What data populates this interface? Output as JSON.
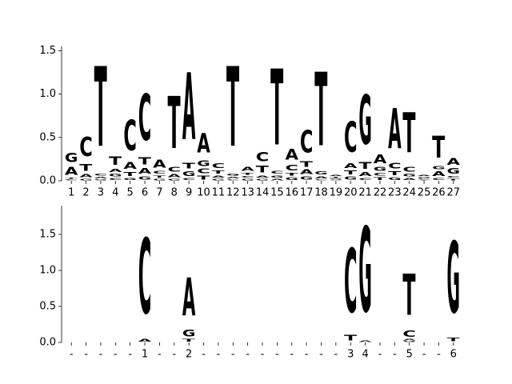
{
  "chart_data": [
    {
      "type": "logo",
      "categories": [
        "1",
        "2",
        "3",
        "4",
        "5",
        "6",
        "7",
        "8",
        "9",
        "10",
        "11",
        "12",
        "13",
        "14",
        "15",
        "16",
        "17",
        "18",
        "19",
        "20",
        "21",
        "22",
        "23",
        "24",
        "25",
        "26",
        "27"
      ],
      "colors": {
        "A": "#008000",
        "C": "#0000ff",
        "G": "#ffa500",
        "T": "#ff0000"
      },
      "ylim": [
        0,
        1.55
      ],
      "yticks": [
        {
          "value": 0,
          "label": "0.0"
        },
        0.5,
        {
          "value": 1,
          "label": "1.0"
        },
        1.5
      ],
      "stacks": [
        {
          "letters": [
            "C",
            "T",
            "A",
            "G"
          ],
          "heights": [
            0.02,
            0.02,
            0.14,
            0.17
          ]
        },
        {
          "letters": [
            "G",
            "A",
            "T",
            "C"
          ],
          "heights": [
            0.03,
            0.06,
            0.12,
            0.35
          ]
        },
        {
          "letters": [
            "G",
            "A",
            "C",
            "T"
          ],
          "heights": [
            0.02,
            0.03,
            0.04,
            1.45
          ]
        },
        {
          "letters": [
            "C",
            "G",
            "A",
            "T"
          ],
          "heights": [
            0.04,
            0.05,
            0.06,
            0.15
          ]
        },
        {
          "letters": [
            "G",
            "T",
            "A",
            "C"
          ],
          "heights": [
            0.04,
            0.07,
            0.12,
            0.56
          ]
        },
        {
          "letters": [
            "G",
            "A",
            "T",
            "C"
          ],
          "heights": [
            0.06,
            0.1,
            0.13,
            0.84
          ]
        },
        {
          "letters": [
            "G",
            "T",
            "C",
            "A"
          ],
          "heights": [
            0.03,
            0.04,
            0.05,
            0.14
          ]
        },
        {
          "letters": [
            "G",
            "A",
            "C",
            "T"
          ],
          "heights": [
            0.03,
            0.06,
            0.08,
            0.95
          ]
        },
        {
          "letters": [
            "C",
            "G",
            "T",
            "A"
          ],
          "heights": [
            0.04,
            0.08,
            0.1,
            1.21
          ]
        },
        {
          "letters": [
            "T",
            "C",
            "G",
            "A"
          ],
          "heights": [
            0.07,
            0.08,
            0.1,
            0.35
          ]
        },
        {
          "letters": [
            "G",
            "A",
            "T",
            "C"
          ],
          "heights": [
            0.03,
            0.04,
            0.06,
            0.08
          ]
        },
        {
          "letters": [
            "C",
            "A",
            "G",
            "T"
          ],
          "heights": [
            0.02,
            0.03,
            0.04,
            1.45
          ]
        },
        {
          "letters": [
            "G",
            "C",
            "T",
            "A"
          ],
          "heights": [
            0.03,
            0.03,
            0.04,
            0.07
          ]
        },
        {
          "letters": [
            "G",
            "A",
            "T",
            "C"
          ],
          "heights": [
            0.03,
            0.04,
            0.12,
            0.17
          ]
        },
        {
          "letters": [
            "A",
            "G",
            "C",
            "T"
          ],
          "heights": [
            0.03,
            0.04,
            0.05,
            1.38
          ]
        },
        {
          "letters": [
            "G",
            "T",
            "C",
            "A"
          ],
          "heights": [
            0.05,
            0.05,
            0.1,
            0.2
          ]
        },
        {
          "letters": [
            "G",
            "A",
            "T",
            "C"
          ],
          "heights": [
            0.06,
            0.08,
            0.1,
            0.41
          ]
        },
        {
          "letters": [
            "C",
            "A",
            "G",
            "T"
          ],
          "heights": [
            0.02,
            0.04,
            0.06,
            1.33
          ]
        },
        {
          "letters": [
            "C",
            "G",
            "T",
            "A"
          ],
          "heights": [
            0.01,
            0.02,
            0.02,
            0.02
          ]
        },
        {
          "letters": [
            "G",
            "T",
            "A",
            "C"
          ],
          "heights": [
            0.06,
            0.07,
            0.08,
            0.56
          ]
        },
        {
          "letters": [
            "C",
            "A",
            "T",
            "G"
          ],
          "heights": [
            0.04,
            0.07,
            0.12,
            0.9
          ]
        },
        {
          "letters": [
            "T",
            "C",
            "G",
            "A"
          ],
          "heights": [
            0.05,
            0.05,
            0.07,
            0.16
          ]
        },
        {
          "letters": [
            "G",
            "T",
            "C",
            "A"
          ],
          "heights": [
            0.05,
            0.07,
            0.1,
            0.73
          ]
        },
        {
          "letters": [
            "A",
            "G",
            "C",
            "T"
          ],
          "heights": [
            0.04,
            0.05,
            0.08,
            0.73
          ]
        },
        {
          "letters": [
            "T",
            "C",
            "G",
            "A"
          ],
          "heights": [
            0.01,
            0.02,
            0.02,
            0.02
          ]
        },
        {
          "letters": [
            "C",
            "A",
            "G",
            "T"
          ],
          "heights": [
            0.04,
            0.08,
            0.06,
            0.4
          ]
        },
        {
          "letters": [
            "T",
            "C",
            "G",
            "A"
          ],
          "heights": [
            0.03,
            0.03,
            0.1,
            0.12
          ]
        }
      ]
    },
    {
      "type": "logo",
      "categories": [
        "-",
        "-",
        "-",
        "-",
        "-",
        "1",
        "-",
        "-",
        "2",
        "-",
        "-",
        "-",
        "-",
        "-",
        "-",
        "-",
        "-",
        "-",
        "-",
        "3",
        "4",
        "-",
        "-",
        "5",
        "-",
        "-",
        "6"
      ],
      "colors": {
        "A": "#008000",
        "C": "#0000ff",
        "G": "#ffa500",
        "T": "#ff0000"
      },
      "ylim": [
        0,
        1.9
      ],
      "yticks": [
        {
          "value": 0,
          "label": "0.0"
        },
        0.5,
        {
          "value": 1,
          "label": "1.0"
        },
        1.5
      ],
      "stacks": [
        {
          "letters": [],
          "heights": []
        },
        {
          "letters": [],
          "heights": []
        },
        {
          "letters": [],
          "heights": []
        },
        {
          "letters": [],
          "heights": []
        },
        {
          "letters": [],
          "heights": []
        },
        {
          "letters": [
            "A",
            "C"
          ],
          "heights": [
            0.05,
            1.65
          ]
        },
        {
          "letters": [],
          "heights": []
        },
        {
          "letters": [],
          "heights": []
        },
        {
          "letters": [
            "T",
            "G",
            "A"
          ],
          "heights": [
            0.05,
            0.15,
            0.83
          ]
        },
        {
          "letters": [],
          "heights": []
        },
        {
          "letters": [],
          "heights": []
        },
        {
          "letters": [],
          "heights": []
        },
        {
          "letters": [],
          "heights": []
        },
        {
          "letters": [],
          "heights": []
        },
        {
          "letters": [],
          "heights": []
        },
        {
          "letters": [],
          "heights": []
        },
        {
          "letters": [],
          "heights": []
        },
        {
          "letters": [],
          "heights": []
        },
        {
          "letters": [],
          "heights": []
        },
        {
          "letters": [
            "T",
            "C"
          ],
          "heights": [
            0.12,
            1.4
          ]
        },
        {
          "letters": [
            "A",
            "G"
          ],
          "heights": [
            0.03,
            1.86
          ]
        },
        {
          "letters": [],
          "heights": []
        },
        {
          "letters": [],
          "heights": []
        },
        {
          "letters": [
            "G",
            "A",
            "C",
            "T"
          ],
          "heights": [
            0.02,
            0.03,
            0.14,
            0.9
          ]
        },
        {
          "letters": [],
          "heights": []
        },
        {
          "letters": [],
          "heights": []
        },
        {
          "letters": [
            "T",
            "G"
          ],
          "heights": [
            0.08,
            1.56
          ]
        }
      ]
    }
  ]
}
